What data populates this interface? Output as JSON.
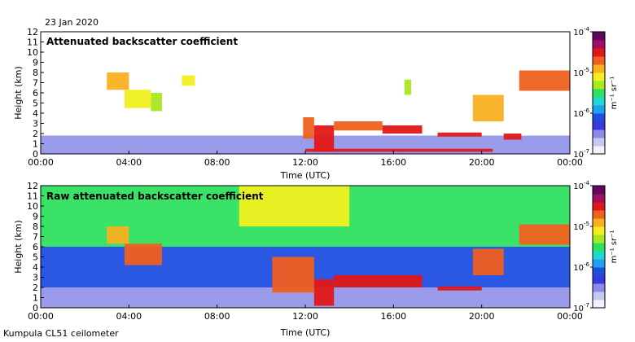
{
  "date_label": "23 Jan 2020",
  "footer_label": "Kumpula CL51 ceilometer",
  "colors": {
    "scale": [
      "#f2f2ff",
      "#c8c8f5",
      "#8a8ae8",
      "#3a3ad8",
      "#1f4fe0",
      "#20a0f0",
      "#20d8d0",
      "#30e060",
      "#a8e820",
      "#f0f020",
      "#f8b020",
      "#f06020",
      "#e01818",
      "#a01060",
      "#600860"
    ]
  },
  "chart_data": [
    {
      "type": "heatmap",
      "title": "Attenuated backscatter coefficient",
      "xlabel": "Time (UTC)",
      "ylabel": "Height (km)",
      "x_ticks": [
        "00:00",
        "04:00",
        "08:00",
        "12:00",
        "16:00",
        "20:00",
        "00:00"
      ],
      "x_range_hours": [
        0,
        24
      ],
      "y_ticks": [
        "0",
        "1",
        "2",
        "3",
        "4",
        "5",
        "6",
        "7",
        "8",
        "9",
        "10",
        "11",
        "12"
      ],
      "ylim_km": [
        0,
        12
      ],
      "colorbar": {
        "label": "m⁻¹ sr⁻¹",
        "ticks": [
          {
            "base": "10",
            "exp": "-4"
          },
          {
            "base": "10",
            "exp": "-5"
          },
          {
            "base": "10",
            "exp": "-6"
          },
          {
            "base": "10",
            "exp": "-7"
          }
        ],
        "scale": "log"
      },
      "features": [
        {
          "t0": 0,
          "t1": 24,
          "h0": 0,
          "h1": 1.8,
          "level": 2
        },
        {
          "t0": 3.0,
          "t1": 4.0,
          "h0": 6.3,
          "h1": 8.0,
          "level": 10
        },
        {
          "t0": 3.8,
          "t1": 5.0,
          "h0": 4.5,
          "h1": 6.3,
          "level": 9
        },
        {
          "t0": 5.0,
          "t1": 5.5,
          "h0": 4.2,
          "h1": 6.0,
          "level": 8
        },
        {
          "t0": 6.4,
          "t1": 7.0,
          "h0": 6.7,
          "h1": 7.7,
          "level": 9
        },
        {
          "t0": 11.9,
          "t1": 12.4,
          "h0": 1.5,
          "h1": 3.6,
          "level": 11
        },
        {
          "t0": 12.4,
          "t1": 13.3,
          "h0": 0.2,
          "h1": 2.8,
          "level": 12
        },
        {
          "t0": 13.3,
          "t1": 15.5,
          "h0": 2.3,
          "h1": 3.2,
          "level": 11
        },
        {
          "t0": 15.5,
          "t1": 17.3,
          "h0": 2.0,
          "h1": 2.8,
          "level": 12
        },
        {
          "t0": 16.5,
          "t1": 16.8,
          "h0": 5.8,
          "h1": 7.3,
          "level": 8
        },
        {
          "t0": 18.0,
          "t1": 20.0,
          "h0": 1.7,
          "h1": 2.1,
          "level": 12
        },
        {
          "t0": 19.6,
          "t1": 21.0,
          "h0": 3.2,
          "h1": 5.8,
          "level": 10
        },
        {
          "t0": 21.0,
          "t1": 21.8,
          "h0": 1.4,
          "h1": 2.0,
          "level": 12
        },
        {
          "t0": 21.7,
          "t1": 24.0,
          "h0": 6.2,
          "h1": 8.2,
          "level": 11
        },
        {
          "t0": 12.0,
          "t1": 20.5,
          "h0": 0.2,
          "h1": 0.5,
          "level": 12
        }
      ]
    },
    {
      "type": "heatmap",
      "title": "Raw attenuated backscatter coefficient",
      "xlabel": "Time (UTC)",
      "ylabel": "Height (km)",
      "x_ticks": [
        "00:00",
        "04:00",
        "08:00",
        "12:00",
        "16:00",
        "20:00",
        "00:00"
      ],
      "x_range_hours": [
        0,
        24
      ],
      "y_ticks": [
        "0",
        "1",
        "2",
        "3",
        "4",
        "5",
        "6",
        "7",
        "8",
        "9",
        "10",
        "11",
        "12"
      ],
      "ylim_km": [
        0,
        12
      ],
      "colorbar": {
        "label": "m⁻¹ sr⁻¹",
        "ticks": [
          {
            "base": "10",
            "exp": "-4"
          },
          {
            "base": "10",
            "exp": "-5"
          },
          {
            "base": "10",
            "exp": "-6"
          },
          {
            "base": "10",
            "exp": "-7"
          }
        ],
        "scale": "log"
      },
      "features": [
        {
          "t0": 0,
          "t1": 24,
          "h0": 0,
          "h1": 2.0,
          "level": 2
        },
        {
          "t0": 0,
          "t1": 24,
          "h0": 2.0,
          "h1": 6.0,
          "level": 4
        },
        {
          "t0": 0,
          "t1": 24,
          "h0": 6.0,
          "h1": 12.0,
          "level": 7
        },
        {
          "t0": 9.0,
          "t1": 14.0,
          "h0": 8.0,
          "h1": 12.0,
          "level": 9
        },
        {
          "t0": 3.0,
          "t1": 4.0,
          "h0": 6.3,
          "h1": 8.0,
          "level": 10
        },
        {
          "t0": 3.8,
          "t1": 5.5,
          "h0": 4.2,
          "h1": 6.3,
          "level": 11
        },
        {
          "t0": 10.5,
          "t1": 12.4,
          "h0": 1.5,
          "h1": 5.0,
          "level": 11
        },
        {
          "t0": 12.4,
          "t1": 13.3,
          "h0": 0.2,
          "h1": 2.8,
          "level": 12
        },
        {
          "t0": 13.3,
          "t1": 17.3,
          "h0": 2.0,
          "h1": 3.2,
          "level": 12
        },
        {
          "t0": 18.0,
          "t1": 20.0,
          "h0": 1.7,
          "h1": 2.1,
          "level": 12
        },
        {
          "t0": 19.6,
          "t1": 21.0,
          "h0": 3.2,
          "h1": 5.8,
          "level": 11
        },
        {
          "t0": 21.7,
          "t1": 24.0,
          "h0": 6.2,
          "h1": 8.2,
          "level": 11
        }
      ]
    }
  ]
}
